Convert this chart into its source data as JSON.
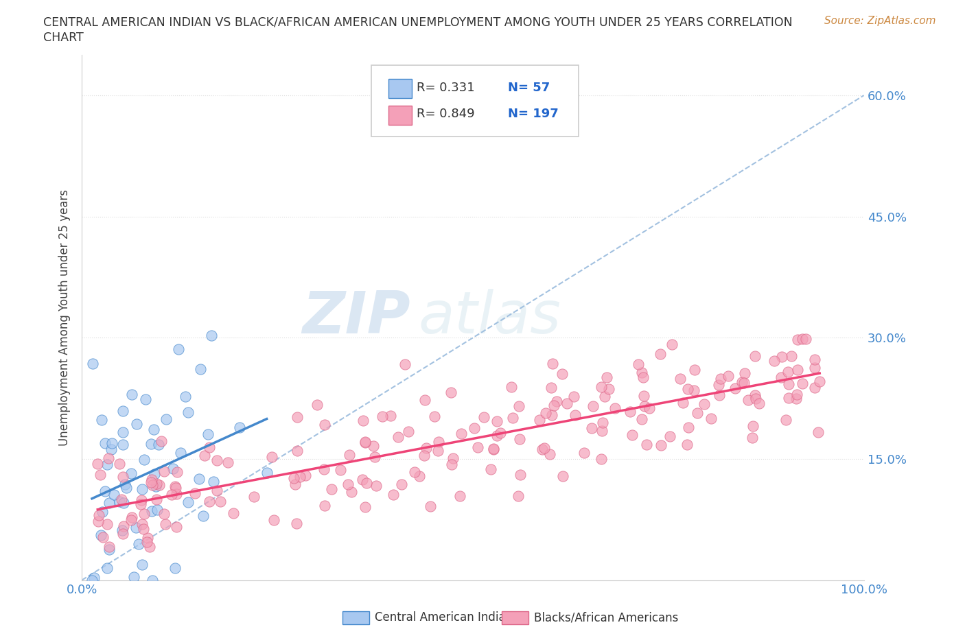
{
  "title_line1": "CENTRAL AMERICAN INDIAN VS BLACK/AFRICAN AMERICAN UNEMPLOYMENT AMONG YOUTH UNDER 25 YEARS CORRELATION",
  "title_line2": "CHART",
  "source_text": "Source: ZipAtlas.com",
  "ylabel": "Unemployment Among Youth under 25 years",
  "xlim": [
    0,
    1.0
  ],
  "ylim": [
    0,
    0.65
  ],
  "xticks": [
    0.0,
    0.1,
    0.2,
    0.3,
    0.4,
    0.5,
    0.6,
    0.7,
    0.8,
    0.9,
    1.0
  ],
  "ytick_vals": [
    0.0,
    0.15,
    0.3,
    0.45,
    0.6
  ],
  "ytick_labels_right": [
    "",
    "15.0%",
    "30.0%",
    "45.0%",
    "60.0%"
  ],
  "xtick_labels": [
    "0.0%",
    "",
    "",
    "",
    "",
    "",
    "",
    "",
    "",
    "",
    "100.0%"
  ],
  "legend_r1": "R= 0.331",
  "legend_n1": "N= 57",
  "legend_r2": "R= 0.849",
  "legend_n2": "N= 197",
  "color_blue": "#A8C8F0",
  "color_pink": "#F4A0B8",
  "color_blue_line": "#4488CC",
  "color_pink_line": "#EE4477",
  "color_dashed": "#99BBDD",
  "watermark_zip": "ZIP",
  "watermark_atlas": "atlas",
  "label_blue": "Central American Indians",
  "label_pink": "Blacks/African Americans",
  "seed": 42,
  "N_blue": 57,
  "N_pink": 197,
  "R_blue": 0.331,
  "R_pink": 0.849,
  "ytick_color": "#4488CC",
  "xtick_color": "#4488CC"
}
